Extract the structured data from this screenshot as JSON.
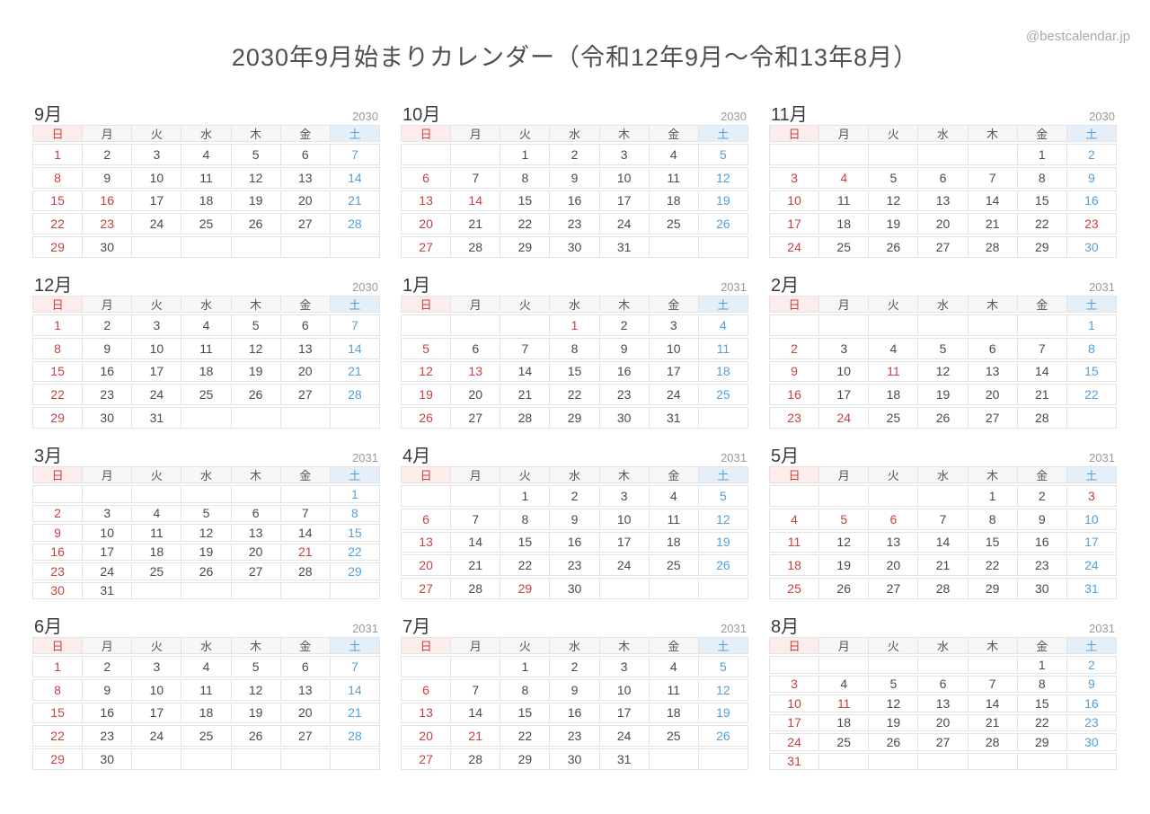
{
  "header": {
    "title": "2030年9月始まりカレンダー（令和12年9月〜令和13年8月）",
    "watermark": "@bestcalendar.jp"
  },
  "weekday_labels": [
    "日",
    "月",
    "火",
    "水",
    "木",
    "金",
    "土"
  ],
  "colors": {
    "sunday_holiday_red": "#c84040",
    "saturday_blue": "#55a0d9",
    "sunday_header_bg": "#fdecec",
    "saturday_header_bg": "#e5effa",
    "weekday_header_bg": "#f7f7f7",
    "cell_border": "#e3e3e3",
    "weekday_text": "#4a4a4a",
    "year_text": "#9a9a9a"
  },
  "cell_code_legend": {
    "r": "red (Sunday/holiday)",
    "b": "blue (Saturday)",
    "plain": "weekday",
    "empty": "blank cell"
  },
  "months": [
    {
      "name": "9月",
      "year": "2030",
      "weeks": [
        [
          "r1",
          "2",
          "3",
          "4",
          "5",
          "6",
          "b7"
        ],
        [
          "r8",
          "9",
          "10",
          "11",
          "12",
          "13",
          "b14"
        ],
        [
          "r15",
          "r16",
          "17",
          "18",
          "19",
          "20",
          "b21"
        ],
        [
          "r22",
          "r23",
          "24",
          "25",
          "26",
          "27",
          "b28"
        ],
        [
          "r29",
          "30",
          "",
          "",
          "",
          "",
          ""
        ]
      ]
    },
    {
      "name": "10月",
      "year": "2030",
      "weeks": [
        [
          "",
          "",
          "1",
          "2",
          "3",
          "4",
          "b5"
        ],
        [
          "r6",
          "7",
          "8",
          "9",
          "10",
          "11",
          "b12"
        ],
        [
          "r13",
          "r14",
          "15",
          "16",
          "17",
          "18",
          "b19"
        ],
        [
          "r20",
          "21",
          "22",
          "23",
          "24",
          "25",
          "b26"
        ],
        [
          "r27",
          "28",
          "29",
          "30",
          "31",
          "",
          ""
        ]
      ]
    },
    {
      "name": "11月",
      "year": "2030",
      "weeks": [
        [
          "",
          "",
          "",
          "",
          "",
          "1",
          "b2"
        ],
        [
          "r3",
          "r4",
          "5",
          "6",
          "7",
          "8",
          "b9"
        ],
        [
          "r10",
          "11",
          "12",
          "13",
          "14",
          "15",
          "b16"
        ],
        [
          "r17",
          "18",
          "19",
          "20",
          "21",
          "22",
          "r23"
        ],
        [
          "r24",
          "25",
          "26",
          "27",
          "28",
          "29",
          "b30"
        ]
      ]
    },
    {
      "name": "12月",
      "year": "2030",
      "weeks": [
        [
          "r1",
          "2",
          "3",
          "4",
          "5",
          "6",
          "b7"
        ],
        [
          "r8",
          "9",
          "10",
          "11",
          "12",
          "13",
          "b14"
        ],
        [
          "r15",
          "16",
          "17",
          "18",
          "19",
          "20",
          "b21"
        ],
        [
          "r22",
          "23",
          "24",
          "25",
          "26",
          "27",
          "b28"
        ],
        [
          "r29",
          "30",
          "31",
          "",
          "",
          "",
          ""
        ]
      ]
    },
    {
      "name": "1月",
      "year": "2031",
      "weeks": [
        [
          "",
          "",
          "",
          "r1",
          "2",
          "3",
          "b4"
        ],
        [
          "r5",
          "6",
          "7",
          "8",
          "9",
          "10",
          "b11"
        ],
        [
          "r12",
          "r13",
          "14",
          "15",
          "16",
          "17",
          "b18"
        ],
        [
          "r19",
          "20",
          "21",
          "22",
          "23",
          "24",
          "b25"
        ],
        [
          "r26",
          "27",
          "28",
          "29",
          "30",
          "31",
          ""
        ]
      ]
    },
    {
      "name": "2月",
      "year": "2031",
      "weeks": [
        [
          "",
          "",
          "",
          "",
          "",
          "",
          "b1"
        ],
        [
          "r2",
          "3",
          "4",
          "5",
          "6",
          "7",
          "b8"
        ],
        [
          "r9",
          "10",
          "r11",
          "12",
          "13",
          "14",
          "b15"
        ],
        [
          "r16",
          "17",
          "18",
          "19",
          "20",
          "21",
          "b22"
        ],
        [
          "r23",
          "r24",
          "25",
          "26",
          "27",
          "28",
          ""
        ]
      ]
    },
    {
      "name": "3月",
      "year": "2031",
      "weeks": [
        [
          "",
          "",
          "",
          "",
          "",
          "",
          "b1"
        ],
        [
          "r2",
          "3",
          "4",
          "5",
          "6",
          "7",
          "b8"
        ],
        [
          "r9",
          "10",
          "11",
          "12",
          "13",
          "14",
          "b15"
        ],
        [
          "r16",
          "17",
          "18",
          "19",
          "20",
          "r21",
          "b22"
        ],
        [
          "r23",
          "24",
          "25",
          "26",
          "27",
          "28",
          "b29"
        ],
        [
          "r30",
          "31",
          "",
          "",
          "",
          "",
          ""
        ]
      ]
    },
    {
      "name": "4月",
      "year": "2031",
      "weeks": [
        [
          "",
          "",
          "1",
          "2",
          "3",
          "4",
          "b5"
        ],
        [
          "r6",
          "7",
          "8",
          "9",
          "10",
          "11",
          "b12"
        ],
        [
          "r13",
          "14",
          "15",
          "16",
          "17",
          "18",
          "b19"
        ],
        [
          "r20",
          "21",
          "22",
          "23",
          "24",
          "25",
          "b26"
        ],
        [
          "r27",
          "28",
          "r29",
          "30",
          "",
          "",
          ""
        ]
      ]
    },
    {
      "name": "5月",
      "year": "2031",
      "weeks": [
        [
          "",
          "",
          "",
          "",
          "1",
          "2",
          "r3"
        ],
        [
          "r4",
          "r5",
          "r6",
          "7",
          "8",
          "9",
          "b10"
        ],
        [
          "r11",
          "12",
          "13",
          "14",
          "15",
          "16",
          "b17"
        ],
        [
          "r18",
          "19",
          "20",
          "21",
          "22",
          "23",
          "b24"
        ],
        [
          "r25",
          "26",
          "27",
          "28",
          "29",
          "30",
          "b31"
        ]
      ]
    },
    {
      "name": "6月",
      "year": "2031",
      "weeks": [
        [
          "r1",
          "2",
          "3",
          "4",
          "5",
          "6",
          "b7"
        ],
        [
          "r8",
          "9",
          "10",
          "11",
          "12",
          "13",
          "b14"
        ],
        [
          "r15",
          "16",
          "17",
          "18",
          "19",
          "20",
          "b21"
        ],
        [
          "r22",
          "23",
          "24",
          "25",
          "26",
          "27",
          "b28"
        ],
        [
          "r29",
          "30",
          "",
          "",
          "",
          "",
          ""
        ]
      ]
    },
    {
      "name": "7月",
      "year": "2031",
      "weeks": [
        [
          "",
          "",
          "1",
          "2",
          "3",
          "4",
          "b5"
        ],
        [
          "r6",
          "7",
          "8",
          "9",
          "10",
          "11",
          "b12"
        ],
        [
          "r13",
          "14",
          "15",
          "16",
          "17",
          "18",
          "b19"
        ],
        [
          "r20",
          "r21",
          "22",
          "23",
          "24",
          "25",
          "b26"
        ],
        [
          "r27",
          "28",
          "29",
          "30",
          "31",
          "",
          ""
        ]
      ]
    },
    {
      "name": "8月",
      "year": "2031",
      "weeks": [
        [
          "",
          "",
          "",
          "",
          "",
          "1",
          "b2"
        ],
        [
          "r3",
          "4",
          "5",
          "6",
          "7",
          "8",
          "b9"
        ],
        [
          "r10",
          "r11",
          "12",
          "13",
          "14",
          "15",
          "b16"
        ],
        [
          "r17",
          "18",
          "19",
          "20",
          "21",
          "22",
          "b23"
        ],
        [
          "r24",
          "25",
          "26",
          "27",
          "28",
          "29",
          "b30"
        ],
        [
          "r31",
          "",
          "",
          "",
          "",
          "",
          ""
        ]
      ]
    }
  ]
}
